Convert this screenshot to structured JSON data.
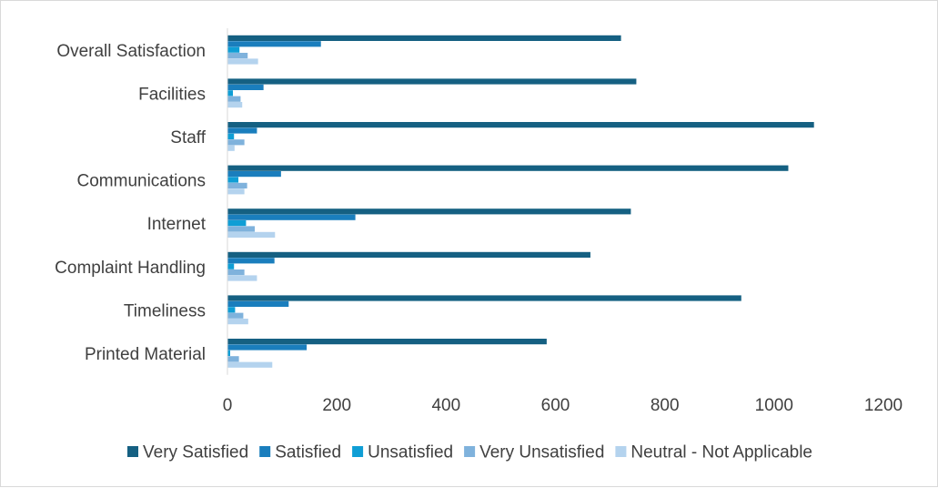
{
  "chart_data": {
    "type": "bar",
    "orientation": "horizontal",
    "categories": [
      "Overall Satisfaction",
      "Facilities",
      "Staff",
      "Communications",
      "Internet",
      "Complaint Handling",
      "Timeliness",
      "Printed Material"
    ],
    "series": [
      {
        "name": "Very Satisfied",
        "color": "#156082",
        "values": [
          720,
          748,
          1073,
          1026,
          738,
          664,
          940,
          584
        ]
      },
      {
        "name": "Satisfied",
        "color": "#1a7ebd",
        "values": [
          171,
          66,
          54,
          98,
          234,
          86,
          112,
          145
        ]
      },
      {
        "name": "Unsatisfied",
        "color": "#0f9ed5",
        "values": [
          22,
          10,
          12,
          20,
          34,
          12,
          14,
          5
        ]
      },
      {
        "name": "Very Unsatisfied",
        "color": "#7fb2dc",
        "values": [
          37,
          24,
          31,
          36,
          50,
          31,
          29,
          21
        ]
      },
      {
        "name": "Neutral - Not Applicable",
        "color": "#b4d3ee",
        "values": [
          56,
          27,
          13,
          31,
          87,
          54,
          38,
          82
        ]
      }
    ],
    "xlim": [
      0,
      1200
    ],
    "xticks": [
      "0",
      "200",
      "400",
      "600",
      "800",
      "1000",
      "1200"
    ],
    "gridlines": false,
    "legend_position": "bottom"
  }
}
